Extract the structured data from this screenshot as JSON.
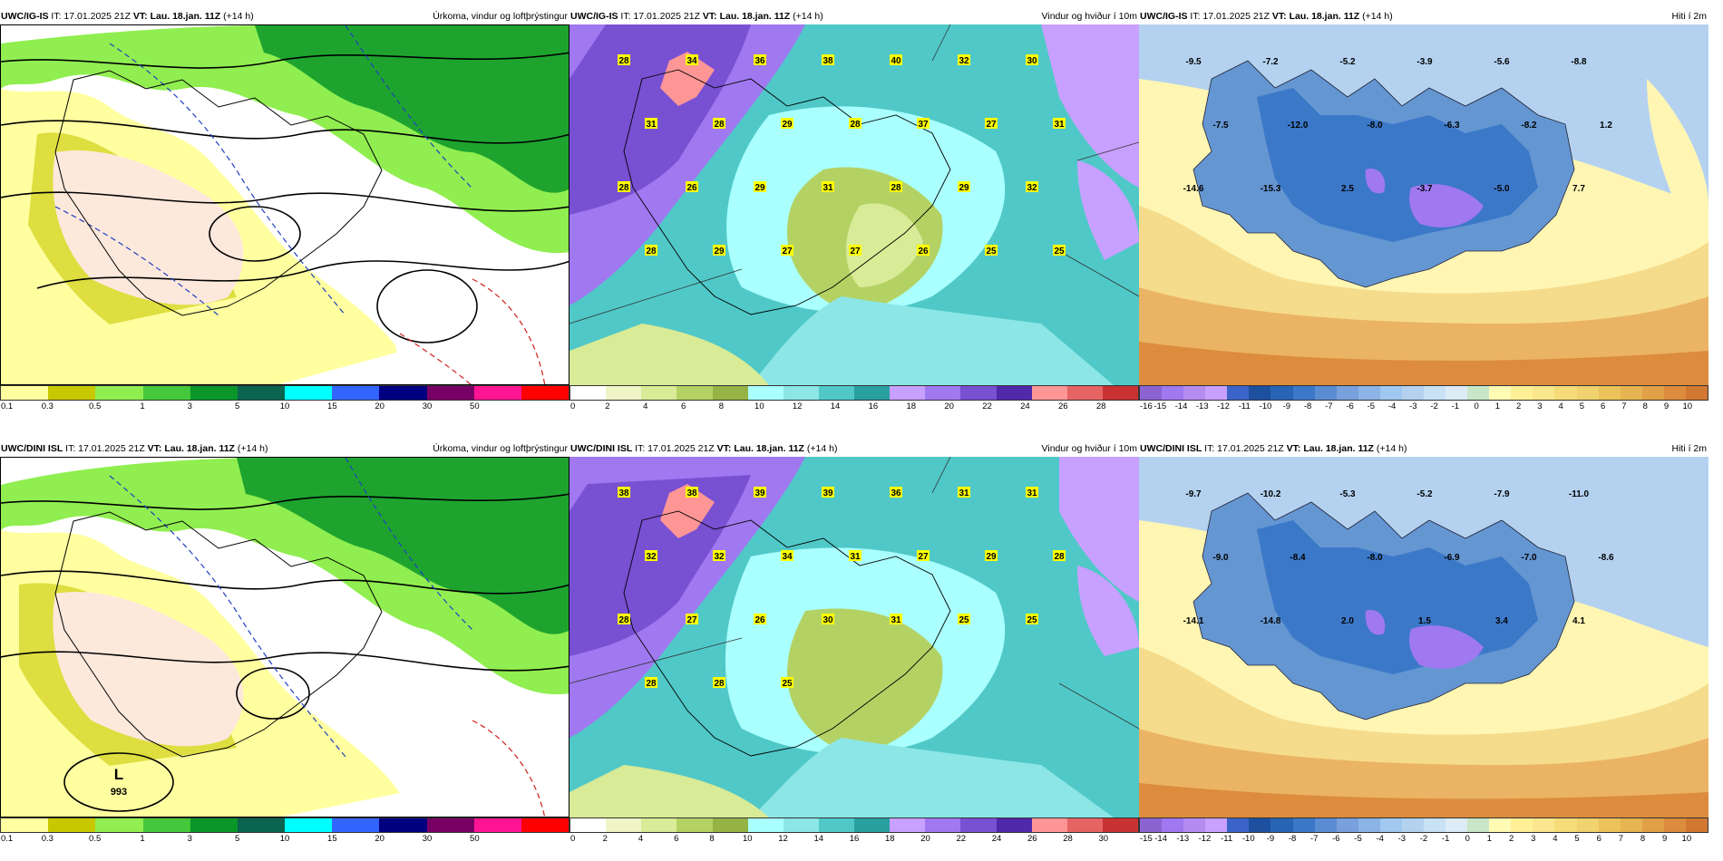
{
  "common": {
    "it_label": "IT: 17.01.2025 21Z",
    "vt_label": "VT: Lau. 18.jan. 11Z",
    "lead": "(+14 h)"
  },
  "rows": [
    {
      "model": "UWC/IG-IS",
      "panels": {
        "precip": {
          "title": "Úrkoma, vindur og loftþrýstingur",
          "scale_ticks": [
            "0.1",
            "0.3",
            "0.5",
            "1",
            "3",
            "5",
            "10",
            "15",
            "20",
            "30",
            "50"
          ],
          "scale_colors": [
            "#ffffa0",
            "#c8c800",
            "#90ee50",
            "#46c83c",
            "#0a9628",
            "#0a6450",
            "#00ffff",
            "#3264ff",
            "#000080",
            "#780064",
            "#ff1493",
            "#ff0000"
          ]
        },
        "wind": {
          "title": "Vindur og hviður í 10m",
          "scale_ticks": [
            "0",
            "2",
            "4",
            "6",
            "8",
            "10",
            "12",
            "14",
            "16",
            "18",
            "20",
            "22",
            "24",
            "26",
            "28"
          ],
          "scale_colors": [
            "#ffffff",
            "#f0f5c8",
            "#d8eb96",
            "#b4d264",
            "#96b446",
            "#aaffff",
            "#8ce6e6",
            "#50c8c8",
            "#28a0a0",
            "#c8a0ff",
            "#a078f0",
            "#7850d2",
            "#5028aa",
            "#ff9696",
            "#e66464",
            "#c83232"
          ],
          "labels": [
            "28",
            "34",
            "36",
            "38",
            "40",
            "32",
            "30",
            "31",
            "28",
            "29",
            "28",
            "37",
            "27",
            "31",
            "28",
            "26",
            "29",
            "31",
            "28",
            "29",
            "32",
            "28",
            "29",
            "27",
            "27",
            "26",
            "25",
            "25"
          ]
        },
        "temp": {
          "title": "Hiti í 2m",
          "scale_ticks": [
            "-16",
            "-15",
            "-14",
            "-13",
            "-12",
            "-11",
            "-10",
            "-9",
            "-8",
            "-7",
            "-6",
            "-5",
            "-4",
            "-3",
            "-2",
            "-1",
            "0",
            "1",
            "2",
            "3",
            "4",
            "5",
            "6",
            "7",
            "8",
            "9",
            "10"
          ],
          "labels": [
            "-9.5",
            "-7.2",
            "-5.2",
            "-3.9",
            "-5.6",
            "-8.8",
            "-7.5",
            "-12.0",
            "-8.0",
            "-6.3",
            "-8.2",
            "1.2",
            "-14.6",
            "-15.3",
            "2.5",
            "-3.7",
            "-5.0",
            "7.7"
          ]
        }
      }
    },
    {
      "model": "UWC/DINI ISL",
      "panels": {
        "precip": {
          "title": "Úrkoma, vindur og loftþrýstingur",
          "scale_ticks": [
            "0.1",
            "0.3",
            "0.5",
            "1",
            "3",
            "5",
            "10",
            "15",
            "20",
            "30",
            "50"
          ],
          "scale_colors": [
            "#ffffa0",
            "#c8c800",
            "#90ee50",
            "#46c83c",
            "#0a9628",
            "#0a6450",
            "#00ffff",
            "#3264ff",
            "#000080",
            "#780064",
            "#ff1493",
            "#ff0000"
          ],
          "low_letter": "L",
          "low_value": "993"
        },
        "wind": {
          "title": "Vindur og hviður í 10m",
          "scale_ticks": [
            "0",
            "2",
            "4",
            "6",
            "8",
            "10",
            "12",
            "14",
            "16",
            "18",
            "20",
            "22",
            "24",
            "26",
            "28",
            "30"
          ],
          "scale_colors": [
            "#ffffff",
            "#f0f5c8",
            "#d8eb96",
            "#b4d264",
            "#96b446",
            "#aaffff",
            "#8ce6e6",
            "#50c8c8",
            "#28a0a0",
            "#c8a0ff",
            "#a078f0",
            "#7850d2",
            "#5028aa",
            "#ff9696",
            "#e66464",
            "#c83232"
          ],
          "labels": [
            "38",
            "38",
            "39",
            "39",
            "36",
            "31",
            "31",
            "32",
            "32",
            "34",
            "31",
            "27",
            "29",
            "28",
            "28",
            "27",
            "26",
            "30",
            "31",
            "25",
            "25",
            "28",
            "28",
            "25"
          ]
        },
        "temp": {
          "title": "Hiti í 2m",
          "scale_ticks": [
            "-15",
            "-14",
            "-13",
            "-12",
            "-11",
            "-10",
            "-9",
            "-8",
            "-7",
            "-6",
            "-5",
            "-4",
            "-3",
            "-2",
            "-1",
            "0",
            "1",
            "2",
            "3",
            "4",
            "5",
            "6",
            "7",
            "8",
            "9",
            "10"
          ],
          "labels": [
            "-9.7",
            "-10.2",
            "-5.3",
            "-5.2",
            "-7.9",
            "-11.0",
            "-9.0",
            "-8.4",
            "-8.0",
            "-6.9",
            "-7.0",
            "-8.6",
            "-14.1",
            "-14.8",
            "2.0",
            "1.5",
            "3.4",
            "4.1"
          ]
        }
      }
    }
  ]
}
